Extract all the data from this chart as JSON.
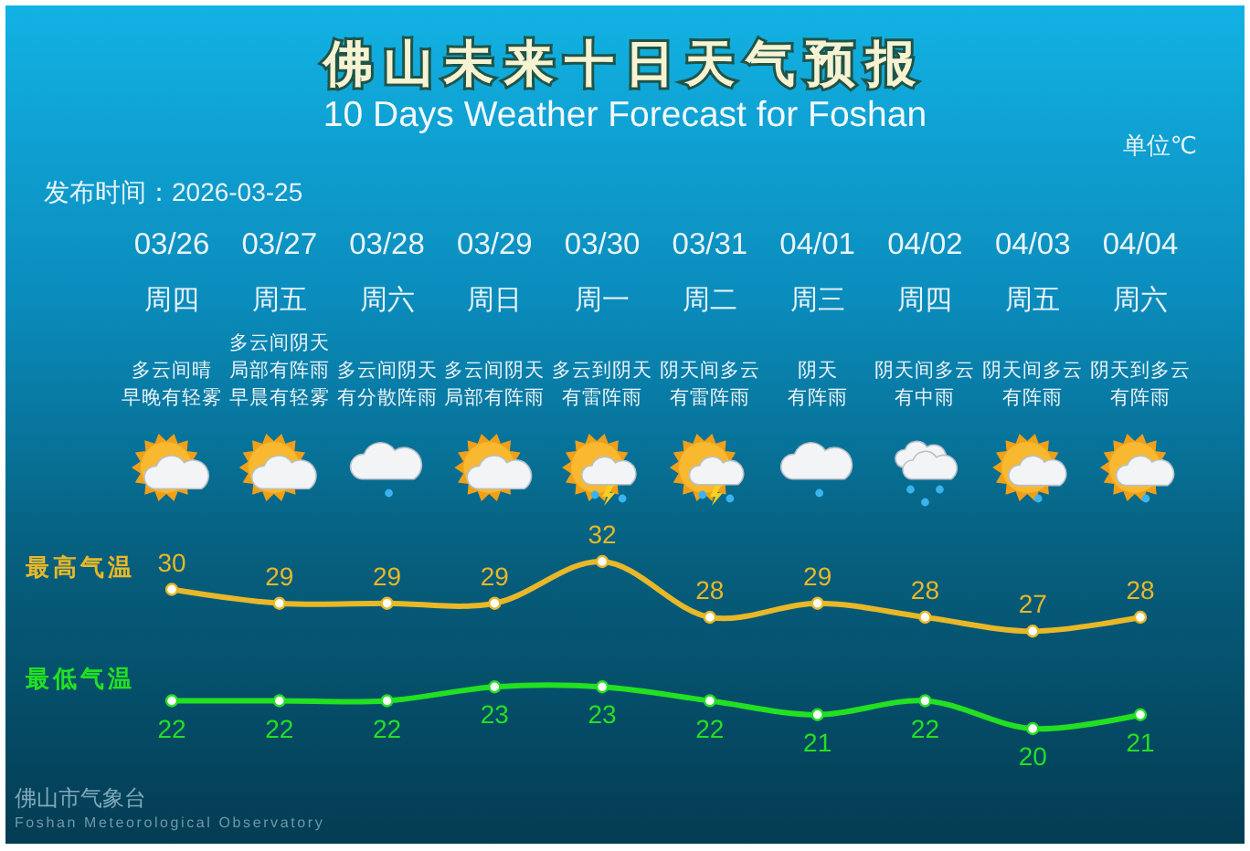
{
  "chart_data": [
    {
      "type": "other",
      "title": "佛山未来十日天气预报",
      "subtitle": "10 Days Weather Forecast for Foshan",
      "annotations": [
        "单位℃",
        "发布时间：2026-03-25",
        "03/26",
        "03/27",
        "03/28",
        "03/29",
        "03/30",
        "03/31",
        "04/01",
        "04/02",
        "04/03",
        "04/04",
        "周四",
        "周五",
        "周六",
        "周日",
        "周一",
        "周二",
        "周三",
        "周四",
        "周五",
        "周六",
        "多云间阴天",
        "多云间晴",
        "局部有阵雨",
        "多云间阴天",
        "多云间阴天",
        "多云到阴天",
        "阴天间多云",
        "阴天",
        "阴天间多云",
        "阴天间多云",
        "阴天到多云",
        "早晚有轻雾",
        "早晨有轻雾",
        "有分散阵雨",
        "局部有阵雨",
        "有雷阵雨",
        "有雷阵雨",
        "有阵雨",
        "有中雨",
        "有阵雨",
        "有阵雨"
      ]
    },
    {
      "type": "line",
      "categories": [
        null,
        null,
        null,
        null,
        null,
        null,
        null,
        null,
        null,
        null
      ],
      "series": [
        {
          "name": "最高气温",
          "color": "#e8b828",
          "values": [
            30,
            29,
            29,
            29,
            32,
            28,
            29,
            28,
            27,
            28
          ]
        },
        {
          "name": "最低气温",
          "color": "#22e022",
          "values": [
            22,
            22,
            22,
            23,
            23,
            22,
            21,
            22,
            20,
            21
          ]
        }
      ],
      "data_labels": true,
      "marker": "circle",
      "annotations": [
        "佛山市气象台",
        "Foshan Meteorological Observatory"
      ]
    }
  ]
}
